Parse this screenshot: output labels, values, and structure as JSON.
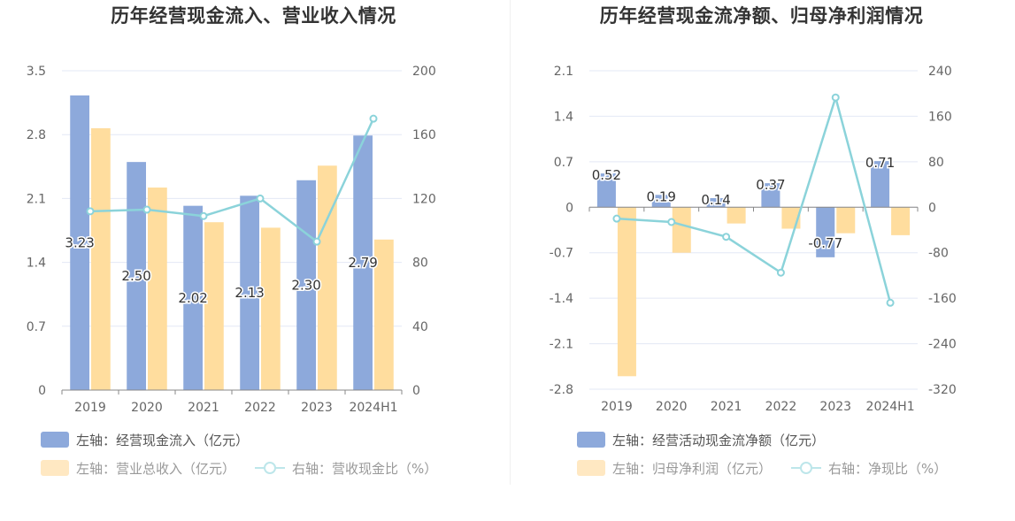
{
  "colors": {
    "bar_primary": "#8DA9DB",
    "bar_secondary": "#FFDD9E",
    "line": "#8BD3DA",
    "grid": "#E3E8F5",
    "axis": "#888888",
    "label": "#555555"
  },
  "legend_icons": {
    "bar": "rounded-rectangle",
    "line": "circle-on-line"
  },
  "left": {
    "title": "历年经营现金流入、营业收入情况",
    "legend": {
      "primary": "左轴：经营现金流入（亿元）",
      "secondary": "左轴：营业总收入（亿元）",
      "line": "右轴：营收现金比（%）"
    }
  },
  "right": {
    "title": "历年经营现金流净额、归母净利润情况",
    "legend": {
      "primary": "左轴：经营活动现金流净额（亿元）",
      "secondary": "左轴：归母净利润（亿元）",
      "line": "右轴：净现比（%）"
    }
  },
  "chart_data": [
    {
      "type": "bar",
      "title": "历年经营现金流入、营业收入情况",
      "categories": [
        "2019",
        "2020",
        "2021",
        "2022",
        "2023",
        "2024H1"
      ],
      "left_axis": {
        "ticks": [
          "0",
          "0.7",
          "1.4",
          "2.1",
          "2.8",
          "3.5"
        ],
        "ylim": [
          0,
          3.5
        ]
      },
      "right_axis": {
        "ticks": [
          "0",
          "40",
          "80",
          "120",
          "160",
          "200"
        ],
        "ylim": [
          0,
          200
        ]
      },
      "grid": true,
      "legend_position": "bottom-left",
      "series": [
        {
          "name": "左轴：经营现金流入（亿元）",
          "type": "bar",
          "axis": "left",
          "values": [
            3.23,
            2.5,
            2.02,
            2.13,
            2.3,
            2.79
          ],
          "labels": [
            "3.23",
            "2.50",
            "2.02",
            "2.13",
            "2.30",
            "2.79"
          ]
        },
        {
          "name": "左轴：营业总收入（亿元）",
          "type": "bar",
          "axis": "left",
          "values": [
            2.87,
            2.22,
            1.84,
            1.78,
            2.46,
            1.65
          ]
        },
        {
          "name": "右轴：营收现金比（%）",
          "type": "line",
          "axis": "right",
          "values": [
            112,
            113,
            109,
            120,
            93,
            170
          ]
        }
      ]
    },
    {
      "type": "bar",
      "title": "历年经营现金流净额、归母净利润情况",
      "categories": [
        "2019",
        "2020",
        "2021",
        "2022",
        "2023",
        "2024H1"
      ],
      "left_axis": {
        "ticks": [
          "-2.8",
          "-2.1",
          "-1.4",
          "-0.7",
          "0",
          "0.7",
          "1.4",
          "2.1"
        ],
        "ylim": [
          -2.8,
          2.1
        ]
      },
      "right_axis": {
        "ticks": [
          "-320",
          "-240",
          "-160",
          "-80",
          "0",
          "80",
          "160",
          "240"
        ],
        "ylim": [
          -320,
          240
        ]
      },
      "grid": true,
      "legend_position": "bottom-left",
      "series": [
        {
          "name": "左轴：经营活动现金流净额（亿元）",
          "type": "bar",
          "axis": "left",
          "values": [
            0.52,
            0.19,
            0.14,
            0.37,
            -0.77,
            0.71
          ],
          "labels": [
            "0.52",
            "0.19",
            "0.14",
            "0.37",
            "-0.77",
            "0.71"
          ]
        },
        {
          "name": "左轴：归母净利润（亿元）",
          "type": "bar",
          "axis": "left",
          "values": [
            -2.6,
            -0.7,
            -0.25,
            -0.33,
            -0.4,
            -0.43
          ]
        },
        {
          "name": "右轴：净现比（%）",
          "type": "line",
          "axis": "right",
          "values": [
            -20,
            -26,
            -52,
            -115,
            193,
            -168
          ]
        }
      ]
    }
  ]
}
